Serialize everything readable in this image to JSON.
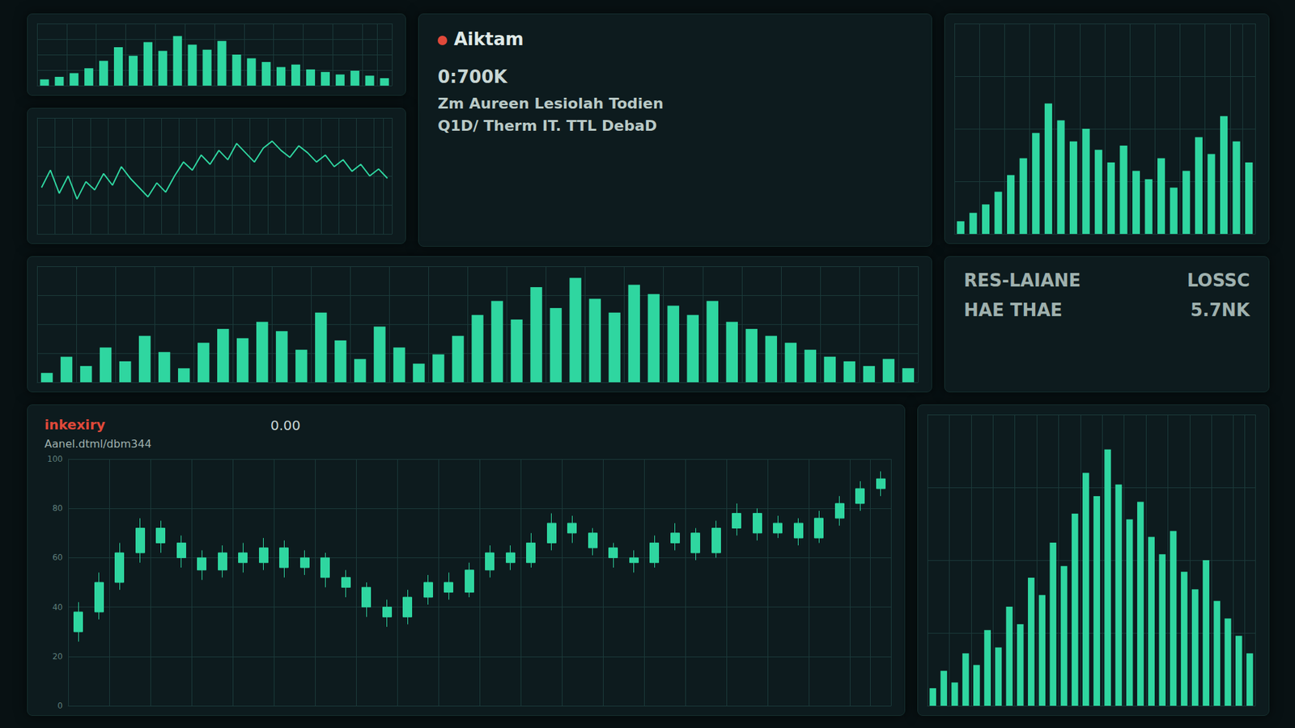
{
  "panels": {
    "info": {
      "title": "Aiktam",
      "value": "0:700K",
      "lines": [
        "Zm Aureen Lesiolah Todien",
        "Q1D/ Therm IT. TTL DebaD"
      ]
    },
    "stats": {
      "rows": [
        [
          "RES-LAIANE",
          "LOSSC"
        ],
        [
          "HAE THAE",
          "5.7NK"
        ]
      ]
    }
  },
  "chart_data": [
    {
      "type": "bar",
      "color": "#2fd6a0",
      "grid": true,
      "tick_labels": false,
      "ylim": [
        0,
        100
      ],
      "yticks": [
        0,
        25,
        50,
        75,
        100
      ],
      "values": [
        10,
        14,
        20,
        28,
        40,
        62,
        48,
        70,
        56,
        80,
        66,
        58,
        72,
        50,
        44,
        38,
        30,
        34,
        26,
        22,
        18,
        24,
        16,
        12
      ]
    },
    {
      "type": "line",
      "color": "#2fd6a0",
      "grid": true,
      "tick_labels": false,
      "ylim": [
        0,
        100
      ],
      "yticks": [
        0,
        25,
        50,
        75,
        100
      ],
      "values": [
        40,
        55,
        35,
        50,
        30,
        45,
        38,
        52,
        42,
        58,
        48,
        40,
        32,
        44,
        36,
        50,
        62,
        55,
        68,
        60,
        72,
        64,
        78,
        70,
        62,
        74,
        80,
        72,
        66,
        76,
        70,
        62,
        68,
        58,
        64,
        54,
        60,
        50,
        56,
        48
      ]
    },
    {
      "type": "bar",
      "color": "#2fd6a0",
      "grid": true,
      "tick_labels": false,
      "ylim": [
        0,
        100
      ],
      "yticks": [
        0,
        25,
        50,
        75,
        100
      ],
      "values": [
        8,
        22,
        14,
        30,
        18,
        40,
        26,
        12,
        34,
        46,
        38,
        52,
        44,
        28,
        60,
        36,
        20,
        48,
        30,
        16,
        24,
        40,
        58,
        70,
        54,
        82,
        64,
        90,
        72,
        60,
        84,
        76,
        66,
        58,
        70,
        52,
        46,
        40,
        34,
        28,
        22,
        18,
        14,
        20,
        12
      ]
    },
    {
      "type": "bar",
      "color": "#2fd6a0",
      "grid": true,
      "tick_labels": false,
      "ylim": [
        0,
        100
      ],
      "yticks": [
        0,
        25,
        50,
        75,
        100
      ],
      "values": [
        6,
        10,
        14,
        20,
        28,
        36,
        48,
        62,
        54,
        44,
        50,
        40,
        34,
        42,
        30,
        26,
        36,
        22,
        30,
        46,
        38,
        56,
        44,
        34
      ]
    },
    {
      "type": "candlestick",
      "color": "#2fd6a0",
      "title": "inkexiry",
      "subtitle": "Aanel.dtml/dbm344",
      "annotation": "0.00",
      "grid": true,
      "tick_labels": "y",
      "ylim": [
        0,
        100
      ],
      "yticks": [
        0,
        20,
        40,
        60,
        80,
        100
      ],
      "values": [
        [
          30,
          38,
          26,
          42
        ],
        [
          38,
          50,
          35,
          54
        ],
        [
          50,
          62,
          47,
          66
        ],
        [
          62,
          72,
          58,
          76
        ],
        [
          72,
          66,
          62,
          75
        ],
        [
          66,
          60,
          56,
          69
        ],
        [
          60,
          55,
          51,
          63
        ],
        [
          55,
          62,
          52,
          65
        ],
        [
          62,
          58,
          54,
          66
        ],
        [
          58,
          64,
          55,
          68
        ],
        [
          64,
          56,
          52,
          67
        ],
        [
          56,
          60,
          53,
          63
        ],
        [
          60,
          52,
          48,
          62
        ],
        [
          52,
          48,
          44,
          55
        ],
        [
          48,
          40,
          36,
          50
        ],
        [
          40,
          36,
          32,
          43
        ],
        [
          36,
          44,
          33,
          47
        ],
        [
          44,
          50,
          41,
          53
        ],
        [
          50,
          46,
          43,
          54
        ],
        [
          46,
          55,
          44,
          58
        ],
        [
          55,
          62,
          52,
          65
        ],
        [
          62,
          58,
          55,
          65
        ],
        [
          58,
          66,
          56,
          70
        ],
        [
          66,
          74,
          63,
          78
        ],
        [
          74,
          70,
          66,
          77
        ],
        [
          70,
          64,
          61,
          72
        ],
        [
          64,
          60,
          56,
          66
        ],
        [
          60,
          58,
          54,
          63
        ],
        [
          58,
          66,
          56,
          69
        ],
        [
          66,
          70,
          63,
          74
        ],
        [
          70,
          62,
          59,
          72
        ],
        [
          62,
          72,
          60,
          75
        ],
        [
          72,
          78,
          69,
          82
        ],
        [
          78,
          70,
          67,
          80
        ],
        [
          70,
          74,
          68,
          77
        ],
        [
          74,
          68,
          65,
          76
        ],
        [
          68,
          76,
          66,
          79
        ],
        [
          76,
          82,
          73,
          85
        ],
        [
          82,
          88,
          79,
          91
        ],
        [
          88,
          92,
          85,
          95
        ]
      ]
    },
    {
      "type": "bar",
      "color": "#2fd6a0",
      "grid": true,
      "tick_labels": false,
      "ylim": [
        0,
        100
      ],
      "yticks": [
        0,
        25,
        50,
        75,
        100
      ],
      "values": [
        6,
        12,
        8,
        18,
        14,
        26,
        20,
        34,
        28,
        44,
        38,
        56,
        48,
        66,
        80,
        72,
        88,
        76,
        64,
        70,
        58,
        52,
        60,
        46,
        40,
        50,
        36,
        30,
        24,
        18
      ]
    }
  ]
}
